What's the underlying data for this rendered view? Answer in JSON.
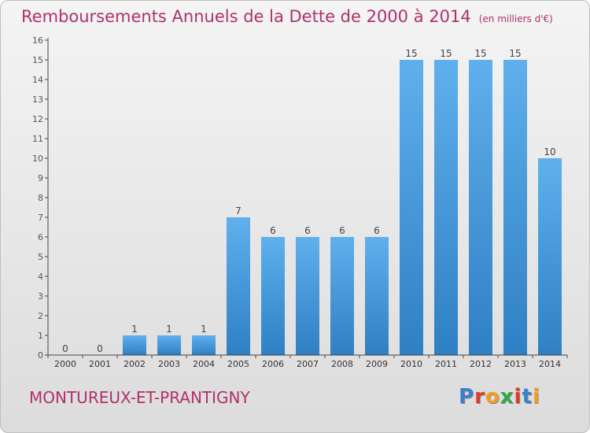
{
  "header": {
    "title": "Remboursements Annuels de la Dette de 2000 à 2014",
    "unit": "(en milliers d'€)"
  },
  "footer": {
    "commune": "MONTUREUX-ET-PRANTIGNY",
    "logo_letters": [
      "P",
      "r",
      "o",
      "x",
      "i",
      "t",
      "i"
    ],
    "logo_colors": [
      "#3a7fd0",
      "#e03a2a",
      "#f0a020",
      "#2fa84a",
      "#e03a2a",
      "#3a7fd0",
      "#f0a020"
    ]
  },
  "chart_data": {
    "type": "bar",
    "title": "Remboursements Annuels de la Dette de 2000 à 2014",
    "xlabel": "",
    "ylabel": "",
    "categories": [
      "2000",
      "2001",
      "2002",
      "2003",
      "2004",
      "2005",
      "2006",
      "2007",
      "2008",
      "2009",
      "2010",
      "2011",
      "2012",
      "2013",
      "2014"
    ],
    "values": [
      0,
      0,
      1,
      1,
      1,
      7,
      6,
      6,
      6,
      6,
      15,
      15,
      15,
      15,
      10
    ],
    "ylim": [
      0,
      16
    ],
    "yticks": [
      0,
      1,
      2,
      3,
      4,
      5,
      6,
      7,
      8,
      9,
      10,
      11,
      12,
      13,
      14,
      15,
      16
    ],
    "grid": false,
    "legend": "none",
    "bar_color": "#4a9fe0"
  }
}
